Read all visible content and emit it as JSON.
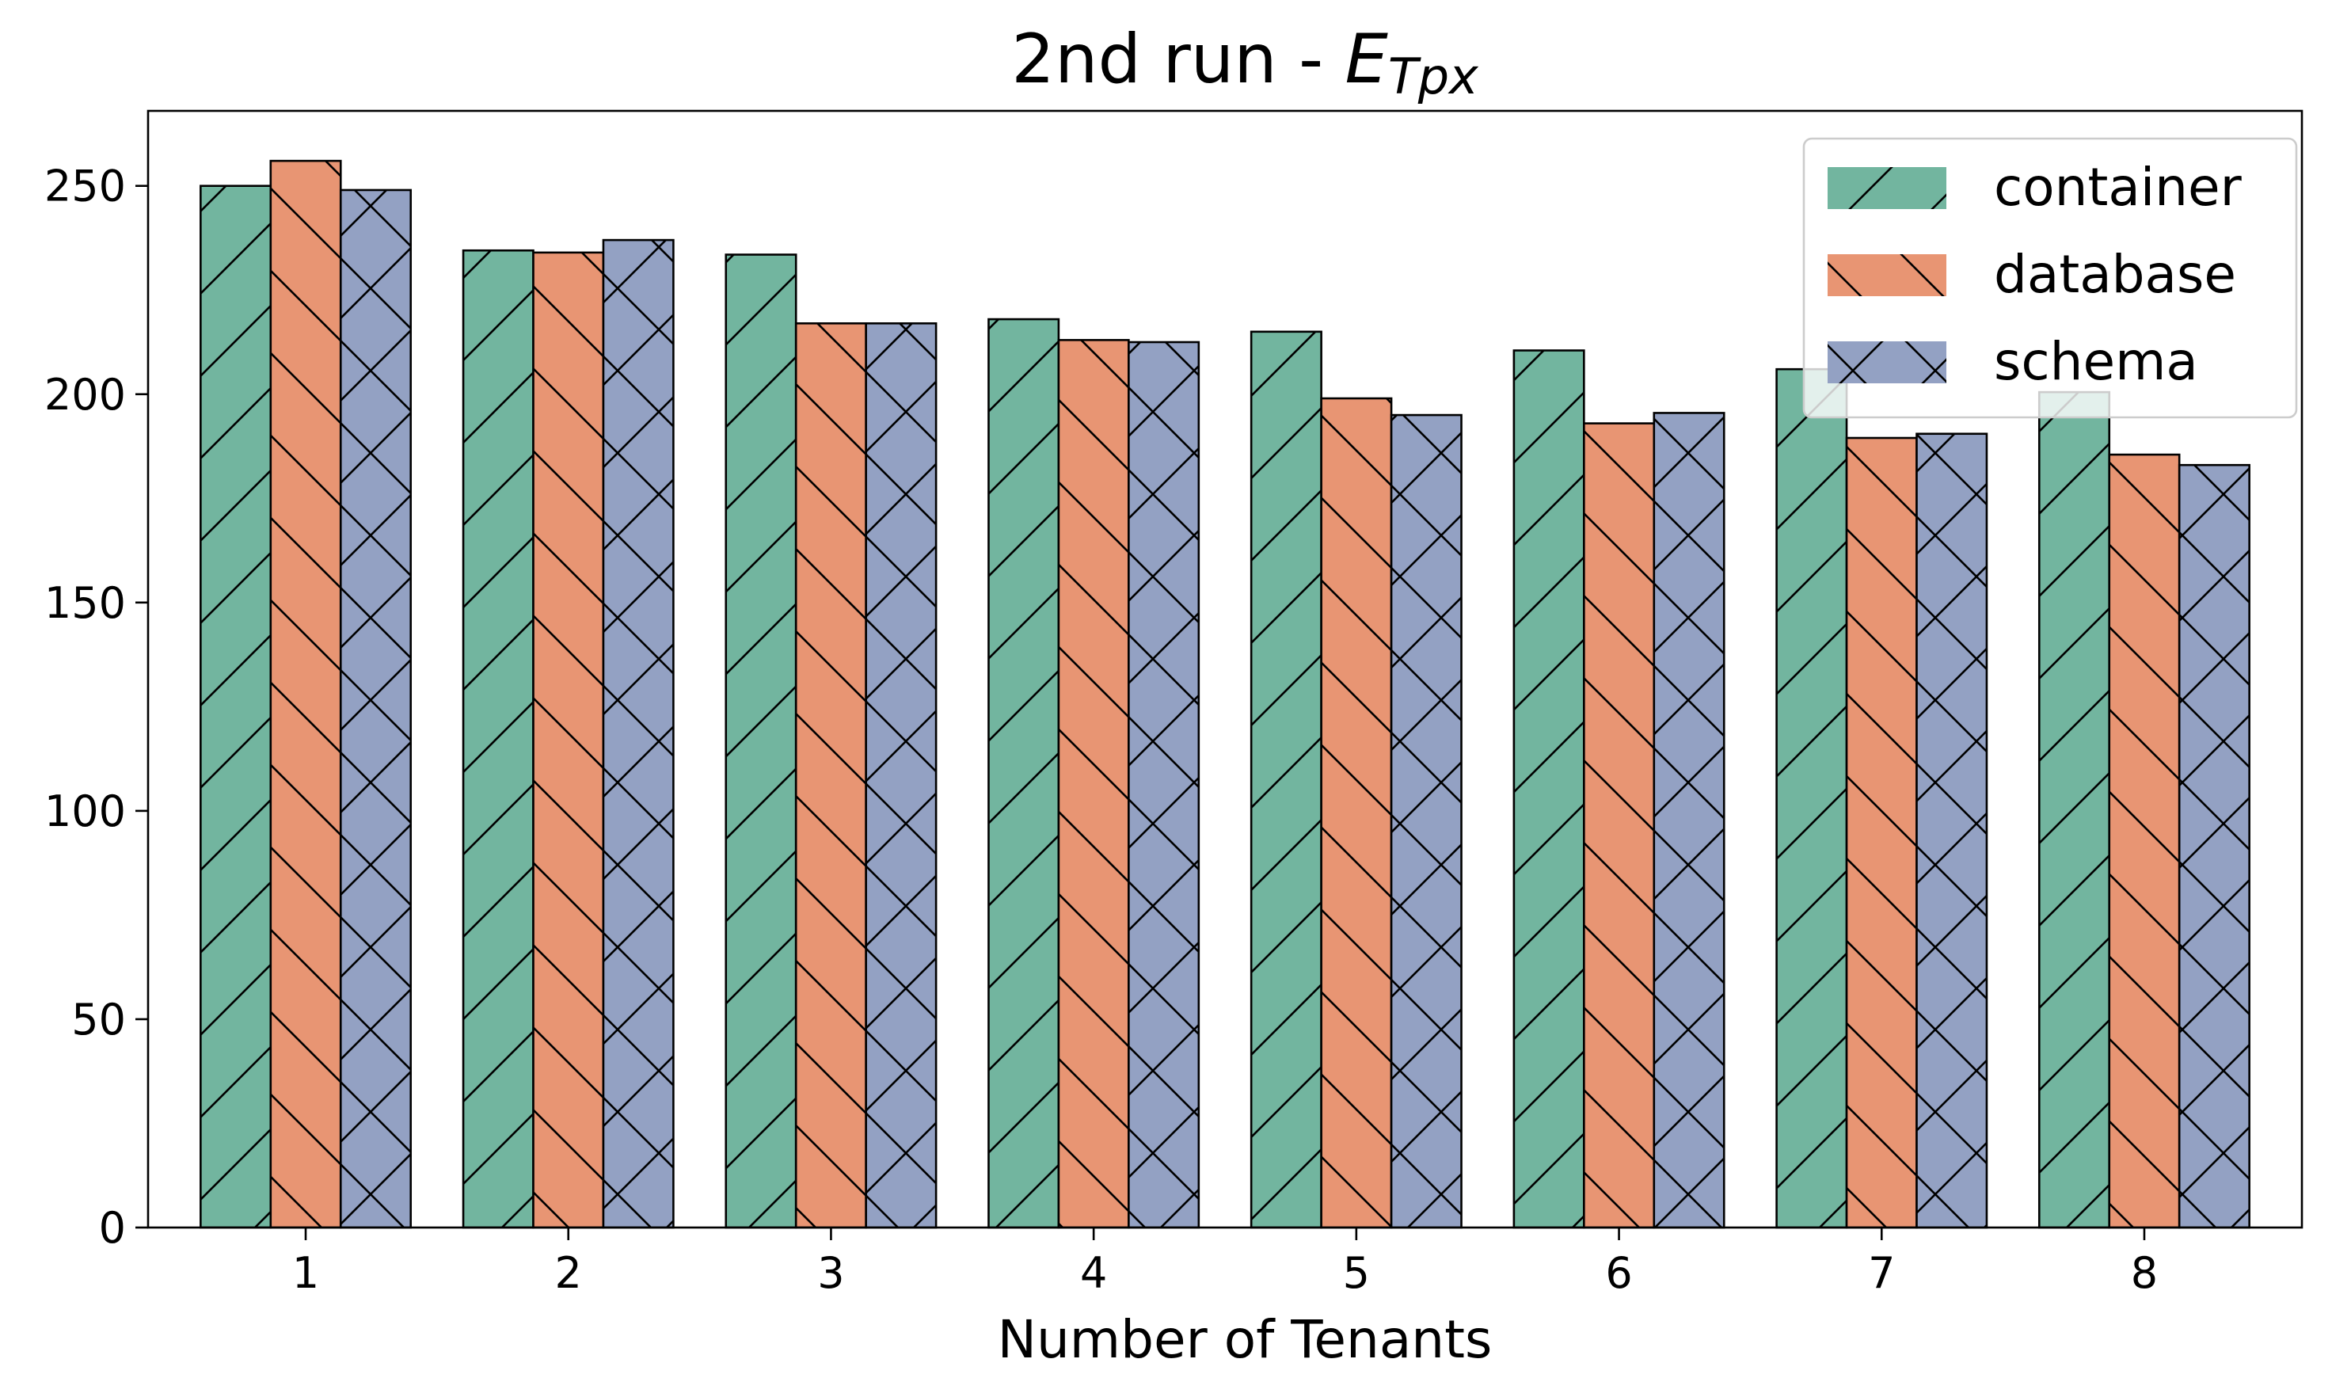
{
  "chart_data": {
    "type": "bar",
    "title": {
      "main": "2nd run - ",
      "symbol": "E",
      "subscript": "Tpx"
    },
    "xlabel": "Number of Tenants",
    "ylabel": "",
    "categories": [
      "1",
      "2",
      "3",
      "4",
      "5",
      "6",
      "7",
      "8"
    ],
    "ylim": [
      0,
      268
    ],
    "yticks": [
      0,
      50,
      100,
      150,
      200,
      250
    ],
    "grid": false,
    "legend_position": "top-right",
    "series": [
      {
        "name": "container",
        "color": "#72b59f",
        "hatch": "/",
        "values": [
          250,
          234.5,
          233.5,
          218,
          215,
          210.5,
          206,
          200.5
        ]
      },
      {
        "name": "database",
        "color": "#e89573",
        "hatch": "\\",
        "values": [
          256,
          234,
          217,
          213,
          199,
          193,
          189.5,
          185.5
        ]
      },
      {
        "name": "schema",
        "color": "#93a1c3",
        "hatch": "x",
        "values": [
          249,
          237,
          217,
          212.5,
          195,
          195.5,
          190.5,
          183
        ]
      }
    ]
  }
}
